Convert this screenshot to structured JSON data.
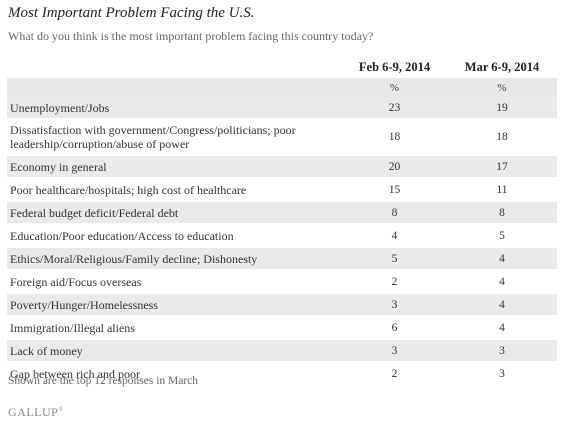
{
  "chart_data": {
    "type": "table",
    "title": "Most Important Problem Facing the U.S.",
    "subtitle": "What do you think is the most important problem facing this country today?",
    "columns": [
      "Feb 6-9, 2014",
      "Mar 6-9, 2014"
    ],
    "units": [
      "%",
      "%"
    ],
    "rows": [
      {
        "label": "Unemployment/Jobs",
        "values": [
          "23",
          "19"
        ]
      },
      {
        "label": "Dissatisfaction with government/Congress/politicians; poor leadership/corruption/abuse of power",
        "values": [
          "18",
          "18"
        ]
      },
      {
        "label": "Economy in general",
        "values": [
          "20",
          "17"
        ]
      },
      {
        "label": "Poor healthcare/hospitals; high cost of healthcare",
        "values": [
          "15",
          "11"
        ]
      },
      {
        "label": "Federal budget deficit/Federal debt",
        "values": [
          "8",
          "8"
        ]
      },
      {
        "label": "Education/Poor education/Access to education",
        "values": [
          "4",
          "5"
        ]
      },
      {
        "label": "Ethics/Moral/Religious/Family decline; Dishonesty",
        "values": [
          "5",
          "4"
        ]
      },
      {
        "label": "Foreign aid/Focus overseas",
        "values": [
          "2",
          "4"
        ]
      },
      {
        "label": "Poverty/Hunger/Homelessness",
        "values": [
          "3",
          "4"
        ]
      },
      {
        "label": "Immigration/Illegal aliens",
        "values": [
          "6",
          "4"
        ]
      },
      {
        "label": "Lack of money",
        "values": [
          "3",
          "3"
        ]
      },
      {
        "label": "Gap between rich and poor",
        "values": [
          "2",
          "3"
        ]
      }
    ],
    "footnote": "Shown are the top 12 responses in March"
  },
  "brand": {
    "logo_text": "GALLUP",
    "logo_mark": "®"
  },
  "colors": {
    "stripe": "#eaeaea",
    "text": "#333333",
    "muted": "#666666"
  }
}
